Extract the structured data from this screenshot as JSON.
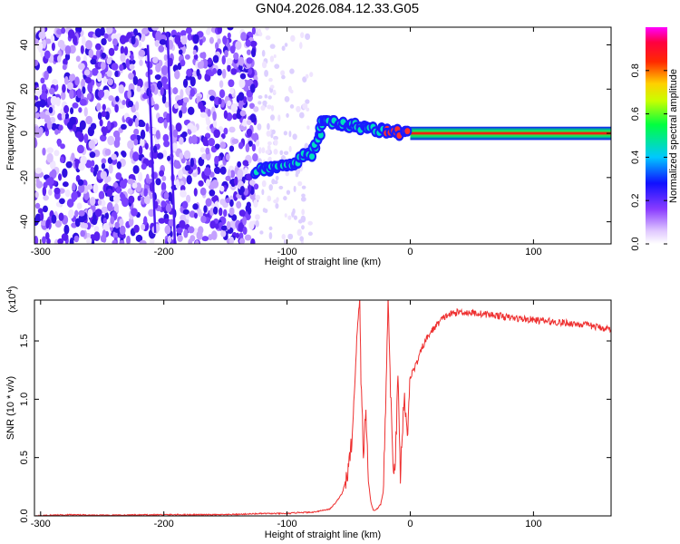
{
  "title": "GN04.2026.084.12.33.G05",
  "chart_data": [
    {
      "type": "heatmap",
      "xlabel": "Height of straight line (km)",
      "ylabel": "Frequency (Hz)",
      "xlim": [
        -305,
        163
      ],
      "ylim": [
        -50,
        48
      ],
      "xticks": [
        -300,
        -200,
        -100,
        0,
        100
      ],
      "yticks": [
        -40,
        -20,
        0,
        20,
        40
      ],
      "colorbar": {
        "label": "Normalized spectral amplitude",
        "range": [
          0,
          1
        ],
        "ticks": [
          "0.0",
          "0.2",
          "0.4",
          "0.6",
          "0.8"
        ],
        "colormap": "rainbow (white→violet→blue→cyan→green→yellow→red→magenta)"
      },
      "features": {
        "noise_region_x": [
          -305,
          -125
        ],
        "sparse_region_x": [
          -125,
          -80
        ],
        "trace": [
          {
            "x": -125,
            "freq": -17,
            "amp": 0.45
          },
          {
            "x": -110,
            "freq": -16,
            "amp": 0.45
          },
          {
            "x": -95,
            "freq": -13,
            "amp": 0.45
          },
          {
            "x": -80,
            "freq": -9,
            "amp": 0.45
          },
          {
            "x": -70,
            "freq": 6,
            "amp": 0.5
          },
          {
            "x": -55,
            "freq": 4,
            "amp": 0.5
          },
          {
            "x": -40,
            "freq": 3,
            "amp": 0.55
          },
          {
            "x": -20,
            "freq": 1,
            "amp": 0.8
          },
          {
            "x": 0,
            "freq": 0,
            "amp": 0.9
          },
          {
            "x": 163,
            "freq": 0,
            "amp": 0.9
          }
        ]
      }
    },
    {
      "type": "line",
      "xlabel": "Height of straight line (km)",
      "ylabel": "SNR (10 * v/v)",
      "ylabel_multiplier": "(x10",
      "ylabel_multiplier_exp": "4",
      "ylabel_multiplier_close": ")",
      "xlim": [
        -305,
        163
      ],
      "ylim": [
        0,
        1.85
      ],
      "xticks": [
        -300,
        -200,
        -100,
        0,
        100
      ],
      "yticks": [
        "0.0",
        "0.5",
        "1.0",
        "1.5"
      ],
      "series": [
        {
          "color": "#ee3030",
          "x": [
            -305,
            -280,
            -250,
            -200,
            -150,
            -120,
            -100,
            -90,
            -80,
            -70,
            -65,
            -60,
            -55,
            -50,
            -47,
            -45,
            -43,
            -41,
            -40,
            -38,
            -36,
            -34,
            -32,
            -30,
            -28,
            -26,
            -24,
            -22,
            -20,
            -18,
            -16,
            -14,
            -12,
            -10,
            -8,
            -5,
            -2,
            0,
            5,
            10,
            15,
            20,
            25,
            30,
            40,
            50,
            60,
            70,
            80,
            100,
            120,
            140,
            163
          ],
          "y": [
            0.0,
            0.01,
            0.005,
            0.01,
            0.01,
            0.02,
            0.02,
            0.03,
            0.03,
            0.05,
            0.06,
            0.12,
            0.2,
            0.4,
            0.7,
            1.15,
            1.6,
            1.85,
            1.2,
            0.55,
            0.9,
            0.3,
            0.12,
            0.05,
            0.05,
            0.07,
            0.1,
            0.2,
            0.9,
            1.85,
            1.1,
            0.4,
            0.5,
            1.2,
            0.35,
            1.05,
            0.7,
            1.2,
            1.3,
            1.45,
            1.55,
            1.62,
            1.68,
            1.72,
            1.75,
            1.74,
            1.73,
            1.72,
            1.7,
            1.68,
            1.66,
            1.64,
            1.6
          ]
        }
      ]
    }
  ]
}
